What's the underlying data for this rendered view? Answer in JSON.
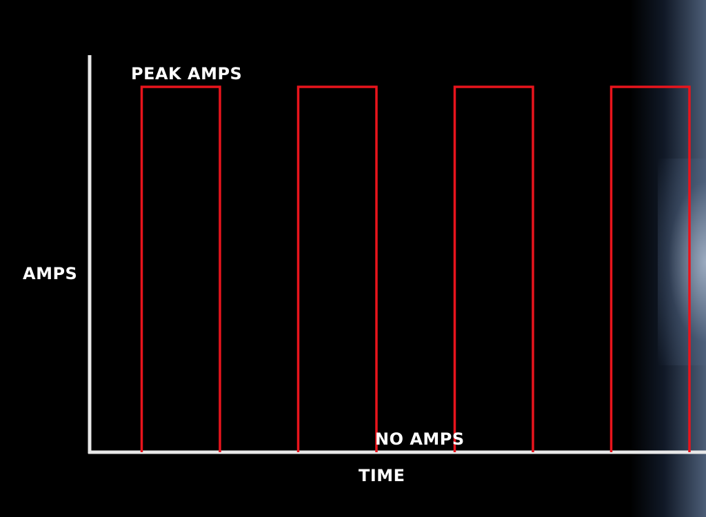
{
  "chart_data": {
    "type": "line",
    "title": "",
    "xlabel": "TIME",
    "ylabel": "AMPS",
    "annotations": {
      "peak": "PEAK AMPS",
      "zero": "NO AMPS"
    },
    "series": [
      {
        "pulses": [
          {
            "start": 1,
            "end": 2
          },
          {
            "start": 3,
            "end": 4
          },
          {
            "start": 5,
            "end": 6
          },
          {
            "start": 7,
            "end": 8
          }
        ],
        "low": 0,
        "high": 1
      }
    ],
    "xlim": [
      0,
      8.5
    ],
    "ylim": [
      0,
      1.1
    ],
    "grid": false,
    "colors": {
      "signal": "#e8141c",
      "axis": "#e8e8e8",
      "background": "#000000"
    }
  }
}
